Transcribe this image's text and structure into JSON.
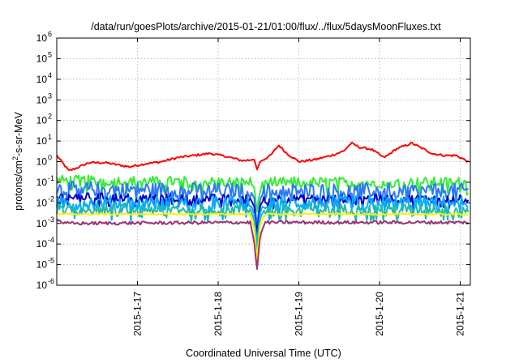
{
  "chart_data": {
    "type": "line",
    "title": "/data/run/goesPlots/archive/2015-01-21/01:00/flux/../flux/5daysMoonFluxes.txt",
    "xlabel": "Coordinated Universal Time (UTC)",
    "ylabel": {
      "prefix": "protons/cm",
      "superscript": "2",
      "suffix": "-s-sr-MeV"
    },
    "y_scale": "log",
    "ylim_exponents": [
      -6,
      6
    ],
    "y_tick_exponents": [
      -6,
      -5,
      -4,
      -3,
      -2,
      -1,
      0,
      1,
      2,
      3,
      4,
      5,
      6
    ],
    "y_tick_base": "10",
    "xlim": [
      "2015-01-16 00:00",
      "2015-01-21 03:00"
    ],
    "x_ticks": [
      "2015-1-17",
      "2015-1-18",
      "2015-1-19",
      "2015-1-20",
      "2015-1-21"
    ],
    "grid": true,
    "legend": "none",
    "series": [
      {
        "color": "#ff0000",
        "baseline_log": 0.1,
        "jitter": 0.05,
        "values": [
          [
            0,
            0.3
          ],
          [
            0.08,
            -0.1
          ],
          [
            0.15,
            -0.45
          ],
          [
            0.25,
            -0.3
          ],
          [
            0.4,
            -0.05
          ],
          [
            0.6,
            -0.05
          ],
          [
            0.9,
            -0.25
          ],
          [
            1.1,
            -0.1
          ],
          [
            1.3,
            0.0
          ],
          [
            1.5,
            0.2
          ],
          [
            1.7,
            0.3
          ],
          [
            1.9,
            0.4
          ],
          [
            2.1,
            0.25
          ],
          [
            2.3,
            0.05
          ],
          [
            2.45,
            0.1
          ],
          [
            2.48,
            -0.4
          ],
          [
            2.52,
            0.0
          ],
          [
            2.65,
            0.3
          ],
          [
            2.75,
            0.8
          ],
          [
            2.85,
            0.4
          ],
          [
            3.0,
            0.0
          ],
          [
            3.2,
            0.1
          ],
          [
            3.4,
            0.3
          ],
          [
            3.55,
            0.5
          ],
          [
            3.65,
            0.9
          ],
          [
            3.75,
            0.7
          ],
          [
            3.9,
            0.6
          ],
          [
            4.05,
            0.2
          ],
          [
            4.1,
            0.3
          ],
          [
            4.2,
            0.6
          ],
          [
            4.4,
            0.9
          ],
          [
            4.5,
            0.7
          ],
          [
            4.65,
            0.4
          ],
          [
            4.8,
            0.3
          ],
          [
            4.95,
            0.3
          ],
          [
            5.1,
            0.0
          ]
        ]
      },
      {
        "color": "#33ee33",
        "baseline_log": -1.0,
        "jitter": 0.25,
        "values": [
          [
            0,
            -0.9
          ],
          [
            2.4,
            -1.0
          ],
          [
            2.45,
            -1.3
          ],
          [
            2.48,
            -2.5
          ],
          [
            2.5,
            -1.8
          ],
          [
            2.55,
            -1.0
          ],
          [
            5.1,
            -1.0
          ]
        ]
      },
      {
        "color": "#2a77ff",
        "baseline_log": -1.4,
        "jitter": 0.35,
        "values": [
          [
            0,
            -1.3
          ],
          [
            2.4,
            -1.4
          ],
          [
            2.45,
            -1.8
          ],
          [
            2.48,
            -3.2
          ],
          [
            2.52,
            -1.8
          ],
          [
            2.58,
            -1.4
          ],
          [
            5.1,
            -1.4
          ]
        ]
      },
      {
        "color": "#0000cc",
        "baseline_log": -1.8,
        "jitter": 0.2,
        "values": [
          [
            0,
            -1.7
          ],
          [
            2.4,
            -1.8
          ],
          [
            2.45,
            -2.2
          ],
          [
            2.48,
            -3.6
          ],
          [
            2.52,
            -2.1
          ],
          [
            2.58,
            -1.8
          ],
          [
            5.1,
            -1.8
          ]
        ]
      },
      {
        "color": "#00aaff",
        "baseline_log": -2.0,
        "jitter": 0.35,
        "values": [
          [
            0,
            -2.0
          ],
          [
            2.4,
            -2.0
          ],
          [
            2.45,
            -2.6
          ],
          [
            2.48,
            -4.0
          ],
          [
            2.52,
            -2.4
          ],
          [
            2.58,
            -2.0
          ],
          [
            5.1,
            -2.0
          ]
        ]
      },
      {
        "color": "#22bbaa",
        "baseline_log": -2.3,
        "jitter": 0.25,
        "values": [
          [
            0,
            -2.3
          ],
          [
            2.4,
            -2.3
          ],
          [
            2.45,
            -2.9
          ],
          [
            2.48,
            -4.3
          ],
          [
            2.52,
            -2.7
          ],
          [
            2.58,
            -2.3
          ],
          [
            5.1,
            -2.3
          ]
        ]
      },
      {
        "color": "#ffee00",
        "baseline_log": -2.55,
        "jitter": 0.04,
        "values": [
          [
            0,
            -2.55
          ],
          [
            2.4,
            -2.55
          ],
          [
            2.45,
            -3.3
          ],
          [
            2.48,
            -4.9
          ],
          [
            2.52,
            -3.0
          ],
          [
            2.58,
            -2.55
          ],
          [
            5.1,
            -2.55
          ]
        ]
      },
      {
        "color": "#993377",
        "baseline_log": -2.95,
        "jitter": 0.08,
        "values": [
          [
            0,
            -2.8
          ],
          [
            0.1,
            -3.0
          ],
          [
            2.4,
            -2.95
          ],
          [
            2.45,
            -4.0
          ],
          [
            2.48,
            -5.3
          ],
          [
            2.52,
            -3.6
          ],
          [
            2.58,
            -2.95
          ],
          [
            5.1,
            -2.95
          ]
        ]
      }
    ]
  }
}
